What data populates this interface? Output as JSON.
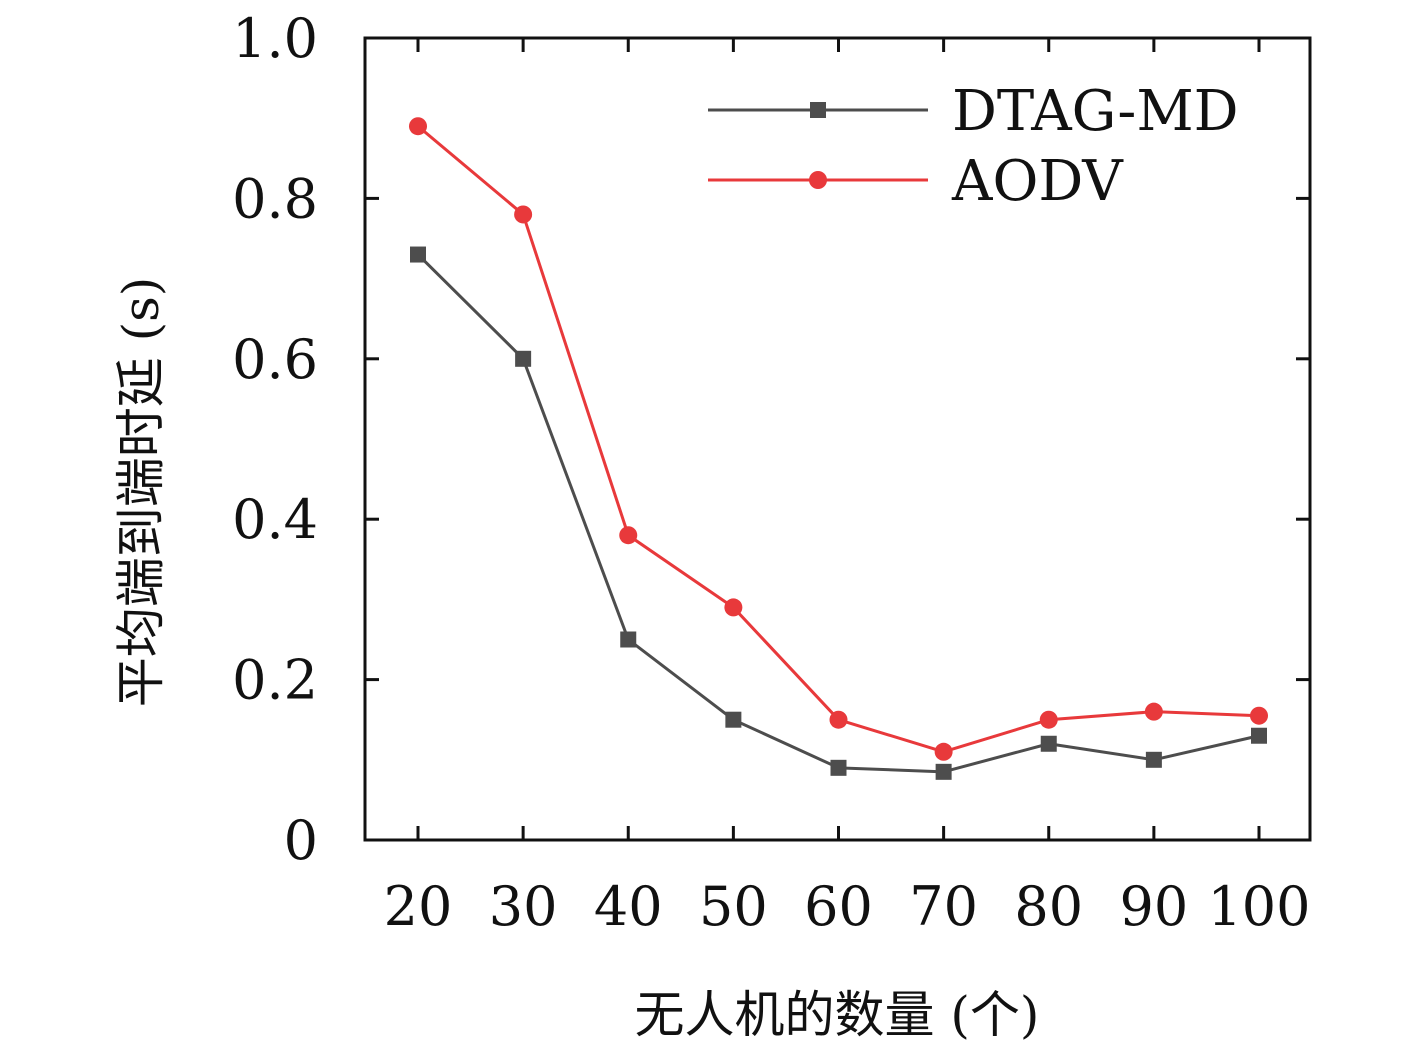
{
  "chart_data": {
    "type": "line",
    "xlabel": "无人机的数量 (个)",
    "ylabel": "平均端到端时延 (s)",
    "x": [
      20,
      30,
      40,
      50,
      60,
      70,
      80,
      90,
      100
    ],
    "x_tick_labels": [
      "20",
      "30",
      "40",
      "50",
      "60",
      "70",
      "80",
      "90",
      "100"
    ],
    "y_tick_labels": [
      "0",
      "0.2",
      "0.4",
      "0.6",
      "0.8",
      "1.0"
    ],
    "y_ticks": [
      0,
      0.2,
      0.4,
      0.6,
      0.8,
      1.0
    ],
    "ylim": [
      0,
      1.0
    ],
    "grid": false,
    "legend_position": "top-right",
    "series": [
      {
        "name": "DTAG-MD",
        "color": "#4d4d4d",
        "marker": "square",
        "values": [
          0.73,
          0.6,
          0.25,
          0.15,
          0.09,
          0.085,
          0.12,
          0.1,
          0.13
        ]
      },
      {
        "name": "AODV",
        "color": "#e8393b",
        "marker": "circle",
        "values": [
          0.89,
          0.78,
          0.38,
          0.29,
          0.15,
          0.11,
          0.15,
          0.16,
          0.155
        ]
      }
    ]
  }
}
